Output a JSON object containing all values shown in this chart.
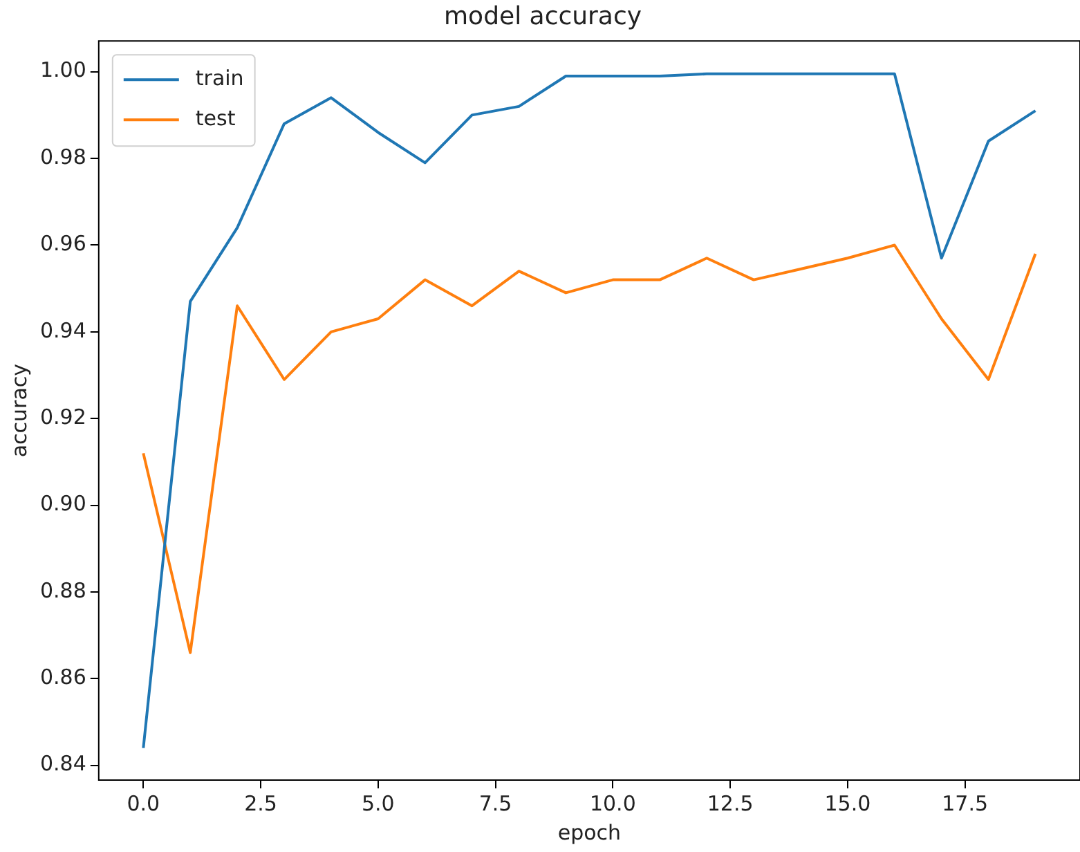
{
  "chart_data": {
    "type": "line",
    "title": "model accuracy",
    "xlabel": "epoch",
    "ylabel": "accuracy",
    "x": [
      0,
      1,
      2,
      3,
      4,
      5,
      6,
      7,
      8,
      9,
      10,
      11,
      12,
      13,
      14,
      15,
      16,
      17,
      18,
      19
    ],
    "series": [
      {
        "name": "train",
        "color": "#1f77b4",
        "values": [
          0.844,
          0.947,
          0.964,
          0.988,
          0.994,
          0.986,
          0.979,
          0.99,
          0.992,
          0.999,
          0.999,
          0.999,
          0.9995,
          0.9995,
          0.9995,
          0.9995,
          0.9995,
          0.957,
          0.984,
          0.991
        ]
      },
      {
        "name": "test",
        "color": "#ff7f0e",
        "values": [
          0.912,
          0.866,
          0.946,
          0.929,
          0.94,
          0.943,
          0.952,
          0.946,
          0.954,
          0.949,
          0.952,
          0.952,
          0.957,
          0.952,
          0.9545,
          0.957,
          0.96,
          0.943,
          0.929,
          0.958
        ]
      }
    ],
    "xlim": [
      -0.95,
      19.95
    ],
    "xticks": [
      {
        "value": 0,
        "label": "0.0"
      },
      {
        "value": 2.5,
        "label": "2.5"
      },
      {
        "value": 5,
        "label": "5.0"
      },
      {
        "value": 7.5,
        "label": "7.5"
      },
      {
        "value": 10,
        "label": "10.0"
      },
      {
        "value": 12.5,
        "label": "12.5"
      },
      {
        "value": 15,
        "label": "15.0"
      },
      {
        "value": 17.5,
        "label": "17.5"
      }
    ],
    "ylim": [
      0.8366,
      1.0071
    ],
    "yticks": [
      {
        "value": 0.84,
        "label": "0.84"
      },
      {
        "value": 0.86,
        "label": "0.86"
      },
      {
        "value": 0.88,
        "label": "0.88"
      },
      {
        "value": 0.9,
        "label": "0.90"
      },
      {
        "value": 0.92,
        "label": "0.92"
      },
      {
        "value": 0.94,
        "label": "0.94"
      },
      {
        "value": 0.96,
        "label": "0.96"
      },
      {
        "value": 0.98,
        "label": "0.98"
      },
      {
        "value": 1,
        "label": "1.00"
      }
    ],
    "grid": false,
    "legend": "top left",
    "marker": "none",
    "line_style": "solid"
  }
}
